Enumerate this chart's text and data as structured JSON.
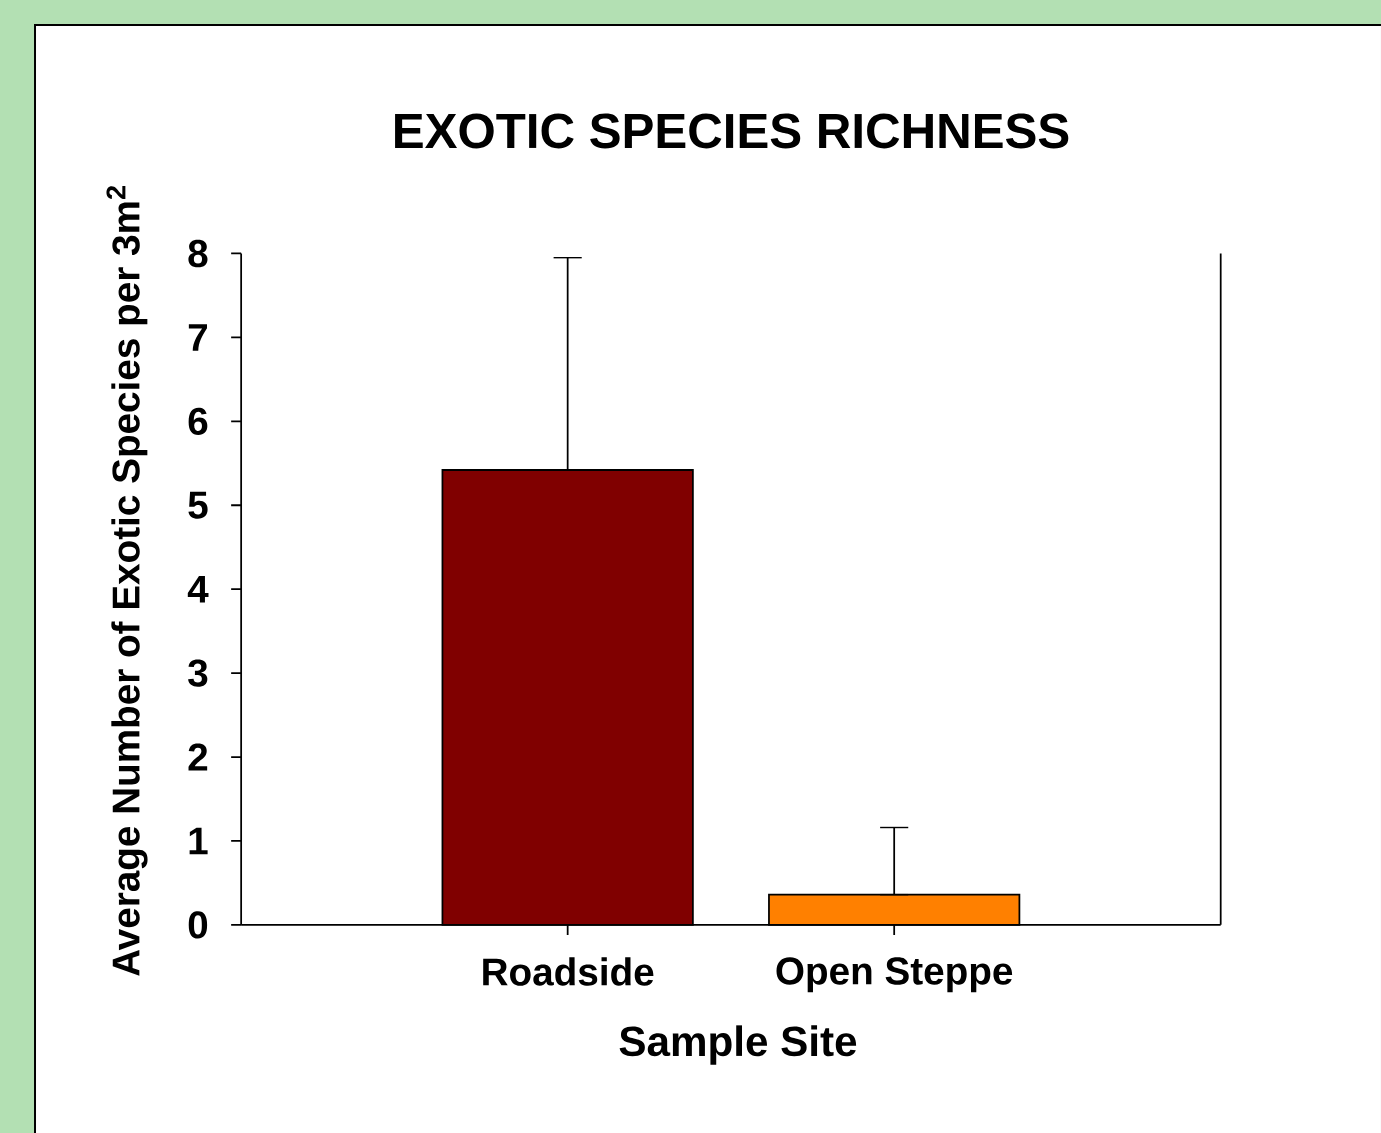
{
  "chart_data": {
    "type": "bar",
    "title": "EXOTIC SPECIES RICHNESS",
    "xlabel": "Sample Site",
    "ylabel": "Average Number of Exotic Species per 3m$^{2}$",
    "categories": [
      "Roadside",
      "Open Steppe"
    ],
    "values": [
      5.42,
      0.36
    ],
    "colors": [
      "#800000",
      "#ff8000"
    ],
    "errors": [
      [
        5.42,
        7.95
      ],
      [
        0.36,
        1.16
      ]
    ],
    "ylim": [
      0,
      8
    ],
    "yticks": [
      0,
      1,
      2,
      3,
      4,
      5,
      6,
      7,
      8
    ]
  }
}
